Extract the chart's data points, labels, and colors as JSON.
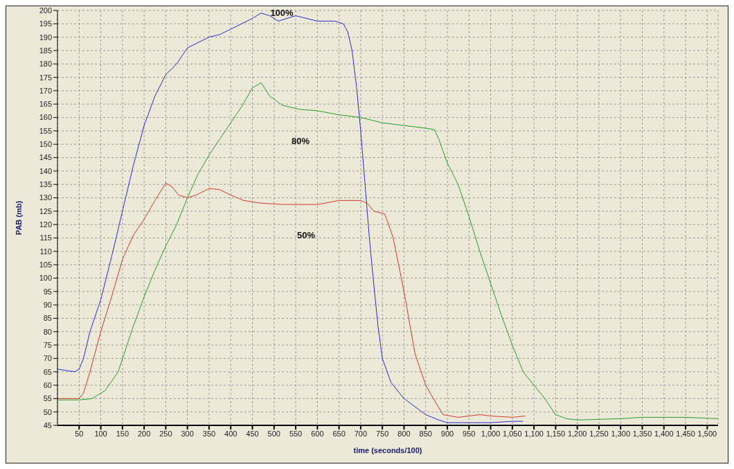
{
  "chart_data": {
    "type": "line",
    "xlabel": "time (seconds/100)",
    "ylabel": "PAB (mb)",
    "xlim": [
      0,
      1525
    ],
    "ylim": [
      45,
      200
    ],
    "xticks": [
      50,
      100,
      150,
      200,
      250,
      300,
      350,
      400,
      450,
      500,
      550,
      600,
      650,
      700,
      750,
      800,
      850,
      900,
      950,
      {
        "value": 1000,
        "label": "1,000"
      },
      {
        "value": 1050,
        "label": "1,050"
      },
      {
        "value": 1100,
        "label": "1,100"
      },
      {
        "value": 1150,
        "label": "1,150"
      },
      {
        "value": 1200,
        "label": "1,200"
      },
      {
        "value": 1250,
        "label": "1,250"
      },
      {
        "value": 1300,
        "label": "1,300"
      },
      {
        "value": 1350,
        "label": "1,350"
      },
      {
        "value": 1400,
        "label": "1,400"
      },
      {
        "value": 1450,
        "label": "1,450"
      },
      {
        "value": 1500,
        "label": "1,500"
      }
    ],
    "yticks": [
      45,
      50,
      55,
      60,
      65,
      70,
      75,
      80,
      85,
      90,
      95,
      100,
      105,
      110,
      115,
      120,
      125,
      130,
      135,
      140,
      145,
      150,
      155,
      160,
      165,
      170,
      175,
      180,
      185,
      190,
      195,
      200
    ],
    "grid": true,
    "legend": false,
    "marker": "none",
    "line_style": "solid",
    "annotations": [
      "100%",
      "80%",
      "50%"
    ],
    "series": [
      {
        "color": "#2b2bd0",
        "x": [
          0,
          20,
          40,
          50,
          60,
          75,
          100,
          125,
          150,
          175,
          200,
          225,
          250,
          275,
          300,
          325,
          350,
          375,
          400,
          425,
          450,
          470,
          490,
          510,
          550,
          600,
          640,
          660,
          670,
          680,
          690,
          700,
          710,
          720,
          730,
          740,
          750,
          770,
          800,
          850,
          880,
          900,
          950,
          1000,
          1050,
          1075
        ],
        "values": [
          66,
          65.5,
          65,
          66,
          70,
          80,
          92,
          108,
          125,
          142,
          157,
          168,
          176,
          180,
          186,
          188,
          190,
          191,
          193,
          195,
          197,
          199,
          198,
          196,
          198,
          196,
          196,
          195,
          192,
          185,
          172,
          155,
          135,
          115,
          98,
          82,
          70,
          61,
          55,
          49,
          47,
          46,
          46,
          46,
          46.5,
          46.5
        ]
      },
      {
        "color": "#d03a2a",
        "x": [
          0,
          50,
          60,
          75,
          100,
          125,
          150,
          175,
          200,
          225,
          250,
          265,
          280,
          300,
          320,
          350,
          375,
          400,
          430,
          470,
          520,
          600,
          650,
          700,
          715,
          730,
          755,
          760,
          775,
          800,
          825,
          850,
          875,
          890,
          925,
          975,
          1000,
          1050,
          1080
        ],
        "values": [
          55,
          55,
          57,
          65,
          80,
          93,
          107,
          116,
          122,
          129,
          135.5,
          134,
          131,
          130,
          131,
          133.5,
          133,
          131,
          129,
          128,
          127.5,
          127.5,
          129,
          129,
          128,
          125,
          124,
          122,
          115,
          95,
          72,
          60,
          53,
          49,
          48,
          49,
          48.5,
          48,
          48.5
        ]
      },
      {
        "color": "#2a9a2a",
        "x": [
          0,
          50,
          80,
          110,
          140,
          175,
          200,
          225,
          250,
          275,
          300,
          325,
          350,
          375,
          400,
          425,
          450,
          470,
          490,
          520,
          560,
          600,
          650,
          700,
          750,
          800,
          850,
          870,
          880,
          900,
          925,
          950,
          975,
          1000,
          1025,
          1050,
          1075,
          1100,
          1125,
          1150,
          1175,
          1200,
          1300,
          1350,
          1450,
          1525
        ],
        "values": [
          54.5,
          54.5,
          55,
          58,
          65,
          82,
          93,
          103,
          112,
          120,
          130,
          139,
          146,
          152,
          158,
          164,
          171,
          173,
          168,
          164.5,
          163,
          162.5,
          161,
          160,
          158,
          157,
          156,
          155.5,
          152,
          143,
          135,
          123,
          110,
          98,
          86,
          75,
          65,
          60,
          55,
          49,
          47.5,
          47,
          47.5,
          48,
          48,
          47.5
        ]
      }
    ]
  }
}
